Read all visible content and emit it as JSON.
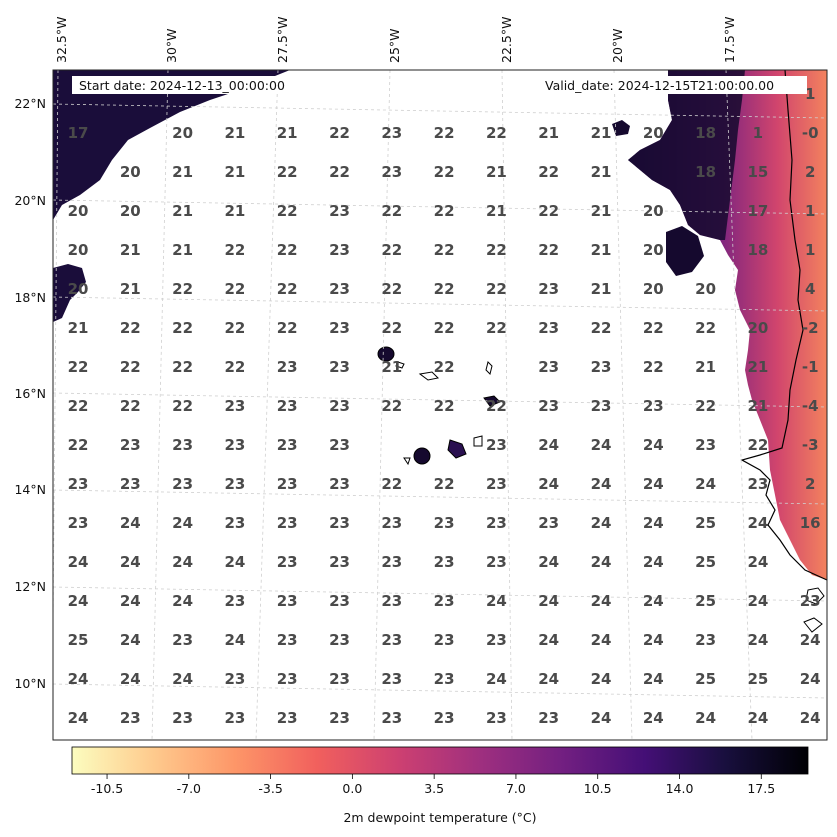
{
  "map": {
    "start_date_label": "Start date: 2024-12-13_00:00:00",
    "valid_date_label": "Valid_date: 2024-12-15T21:00:00.00",
    "lon_labels": [
      "32.5°W",
      "30°W",
      "27.5°W",
      "25°W",
      "22.5°W",
      "20°W",
      "17.5°W"
    ],
    "lat_labels": [
      "22°N",
      "20°N",
      "18°N",
      "16°N",
      "14°N",
      "12°N",
      "10°N"
    ],
    "grid_values": [
      [
        "",
        "",
        "",
        "",
        "",
        "",
        "",
        "",
        "",
        "",
        "",
        "",
        "",
        "",
        "1"
      ],
      [
        "17",
        "",
        "20",
        "21",
        "21",
        "22",
        "23",
        "22",
        "22",
        "21",
        "21",
        "20",
        "18",
        "1",
        "-0"
      ],
      [
        "",
        "20",
        "21",
        "21",
        "22",
        "22",
        "23",
        "22",
        "21",
        "22",
        "21",
        "",
        "18",
        "15",
        "2"
      ],
      [
        "20",
        "20",
        "21",
        "21",
        "22",
        "23",
        "22",
        "22",
        "21",
        "22",
        "21",
        "20",
        "",
        "17",
        "1"
      ],
      [
        "20",
        "21",
        "21",
        "22",
        "22",
        "23",
        "22",
        "22",
        "22",
        "22",
        "21",
        "20",
        "",
        "18",
        "1"
      ],
      [
        "20",
        "21",
        "22",
        "22",
        "22",
        "23",
        "22",
        "22",
        "22",
        "23",
        "21",
        "20",
        "20",
        "",
        "4"
      ],
      [
        "21",
        "22",
        "22",
        "22",
        "22",
        "23",
        "22",
        "22",
        "22",
        "23",
        "22",
        "22",
        "22",
        "20",
        "-2"
      ],
      [
        "22",
        "22",
        "22",
        "22",
        "23",
        "23",
        "21",
        "22",
        "",
        "23",
        "23",
        "22",
        "21",
        "21",
        "-1"
      ],
      [
        "22",
        "22",
        "22",
        "23",
        "23",
        "23",
        "22",
        "22",
        "22",
        "23",
        "23",
        "23",
        "22",
        "21",
        "-4"
      ],
      [
        "22",
        "23",
        "23",
        "23",
        "23",
        "23",
        "",
        "",
        "23",
        "24",
        "24",
        "24",
        "23",
        "22",
        "-3"
      ],
      [
        "23",
        "23",
        "23",
        "23",
        "23",
        "23",
        "22",
        "22",
        "23",
        "24",
        "24",
        "24",
        "24",
        "23",
        "2"
      ],
      [
        "23",
        "24",
        "24",
        "23",
        "23",
        "23",
        "23",
        "23",
        "23",
        "23",
        "24",
        "24",
        "25",
        "24",
        "16"
      ],
      [
        "24",
        "24",
        "24",
        "24",
        "23",
        "23",
        "23",
        "23",
        "23",
        "24",
        "24",
        "24",
        "25",
        "24",
        ""
      ],
      [
        "24",
        "24",
        "24",
        "23",
        "23",
        "23",
        "23",
        "23",
        "24",
        "24",
        "24",
        "24",
        "25",
        "24",
        "23"
      ],
      [
        "25",
        "24",
        "23",
        "24",
        "23",
        "23",
        "23",
        "23",
        "23",
        "24",
        "24",
        "24",
        "23",
        "24",
        "24"
      ],
      [
        "24",
        "24",
        "24",
        "23",
        "23",
        "23",
        "23",
        "23",
        "24",
        "24",
        "24",
        "24",
        "25",
        "25",
        "24"
      ],
      [
        "24",
        "23",
        "23",
        "23",
        "23",
        "23",
        "23",
        "23",
        "23",
        "23",
        "24",
        "24",
        "24",
        "24",
        "24"
      ]
    ]
  },
  "colorbar": {
    "title": "2m dewpoint temperature (°C)",
    "ticks": [
      "-10.5",
      "-7.0",
      "-3.5",
      "0.0",
      "3.5",
      "7.0",
      "10.5",
      "14.0",
      "17.5"
    ],
    "min": -12,
    "max": 19.5,
    "colors": [
      "#fcfdbf",
      "#feca8d",
      "#fd9668",
      "#f1605d",
      "#cd4071",
      "#9e2f7f",
      "#721f81",
      "#440f76",
      "#180f3d",
      "#000004"
    ]
  }
}
